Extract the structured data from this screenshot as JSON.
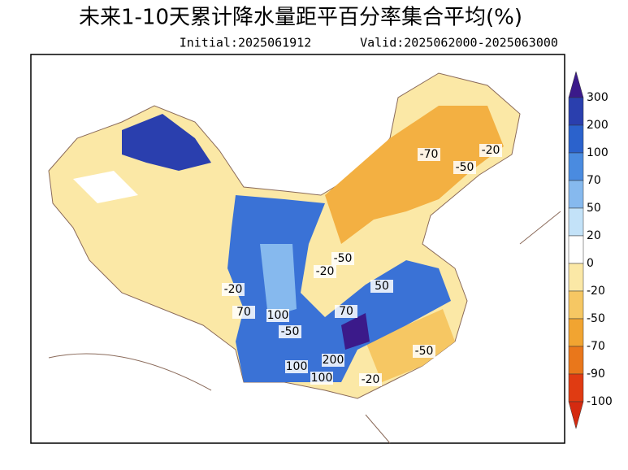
{
  "header": {
    "title": "未来1-10天累计降水量距平百分率集合平均(%)",
    "initial": "Initial:2025061912",
    "valid": "Valid:2025062000-2025063000"
  },
  "colorbar": {
    "levels": [
      300,
      200,
      100,
      70,
      50,
      20,
      0,
      -20,
      -50,
      -70,
      -90,
      -100
    ],
    "colors": [
      "#3b1a8a",
      "#2a3fae",
      "#2b62cc",
      "#4a8be0",
      "#86b9ee",
      "#c3e2f8",
      "#ffffff",
      "#fbe8a6",
      "#f6c763",
      "#f1a431",
      "#e9771b",
      "#e03b12",
      "#d42a10"
    ]
  },
  "contour_labels": [
    "-70",
    "-20",
    "-50",
    "-50",
    "-20",
    "50",
    "-20",
    "70",
    "100",
    "-50",
    "70",
    "100",
    "200",
    "100",
    "-20",
    "-50"
  ]
}
